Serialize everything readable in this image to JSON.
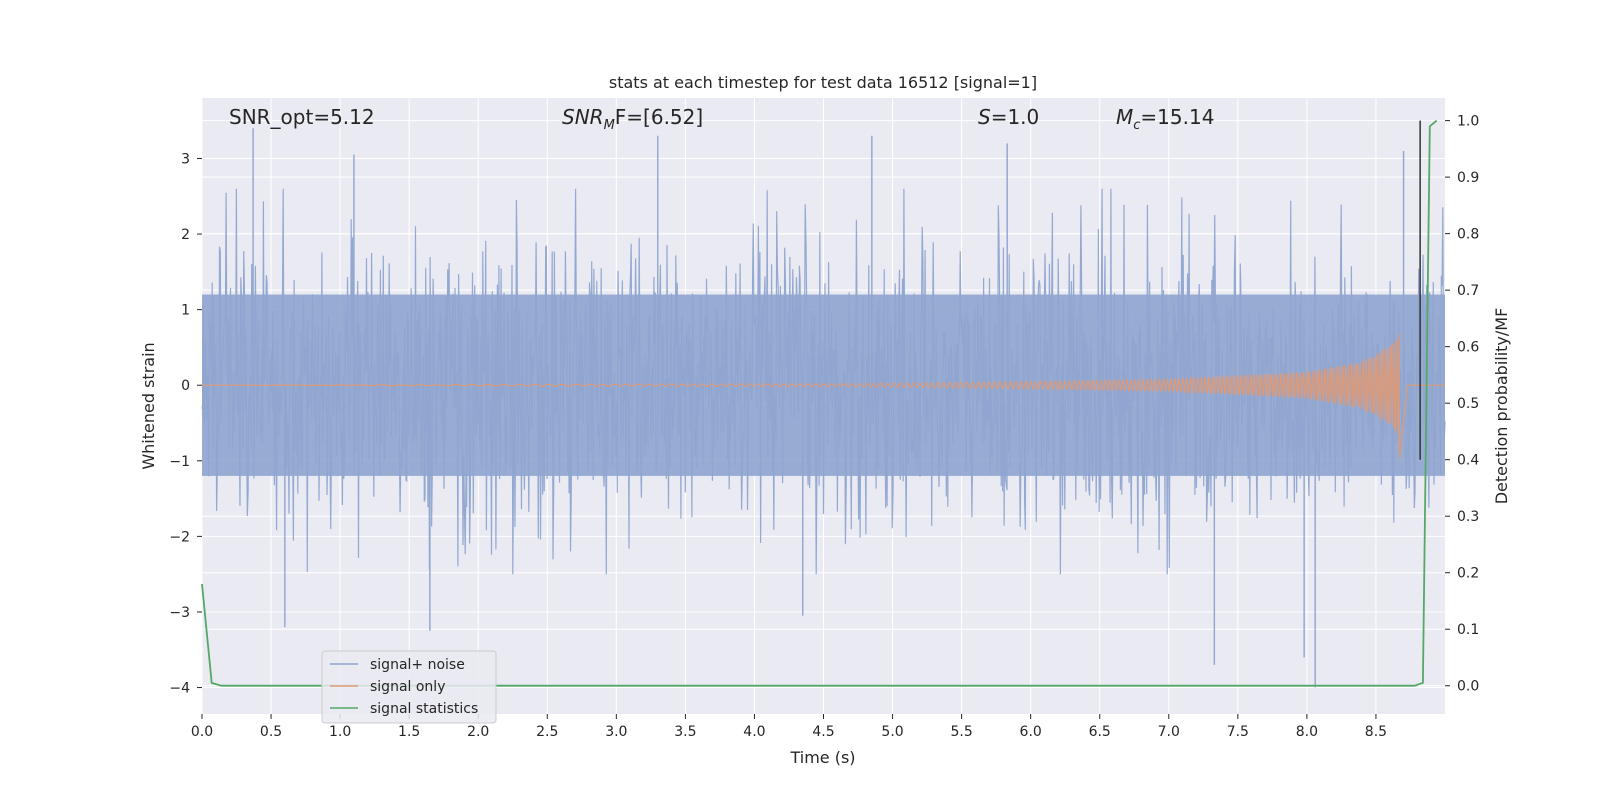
{
  "chart_data": {
    "type": "line",
    "title": "stats at each timestep for test data 16512 [signal=1]",
    "xlabel": "Time (s)",
    "ylabel_left": "Whitened strain",
    "ylabel_right": "Detection probability/MF",
    "xlim": [
      0.0,
      9.0
    ],
    "ylim_left": [
      -4.35,
      3.8
    ],
    "ylim_right": [
      -0.05,
      1.04
    ],
    "x_ticks": [
      "0.0",
      "0.5",
      "1.0",
      "1.5",
      "2.0",
      "2.5",
      "3.0",
      "3.5",
      "4.0",
      "4.5",
      "5.0",
      "5.5",
      "6.0",
      "6.5",
      "7.0",
      "7.5",
      "8.0",
      "8.5"
    ],
    "x_tick_values": [
      0.0,
      0.5,
      1.0,
      1.5,
      2.0,
      2.5,
      3.0,
      3.5,
      4.0,
      4.5,
      5.0,
      5.5,
      6.0,
      6.5,
      7.0,
      7.5,
      8.0,
      8.5
    ],
    "y_left_ticks": [
      "3",
      "2",
      "1",
      "0",
      "−1",
      "−2",
      "−3",
      "−4"
    ],
    "y_left_tick_values": [
      3,
      2,
      1,
      0,
      -1,
      -2,
      -3,
      -4
    ],
    "y_right_ticks": [
      "1.0",
      "0.9",
      "0.8",
      "0.7",
      "0.6",
      "0.5",
      "0.4",
      "0.3",
      "0.2",
      "0.1",
      "0.0"
    ],
    "y_right_tick_values": [
      1.0,
      0.9,
      0.8,
      0.7,
      0.6,
      0.5,
      0.4,
      0.3,
      0.2,
      0.1,
      0.0
    ],
    "grid": true,
    "legend_position": "lower-left",
    "annotations": {
      "snr_opt": "SNR_opt=5.12",
      "snr_mf_main": "SNR",
      "snr_mf_sub": "M",
      "snr_mf_rest": "F=[6.52]",
      "s_main": "S",
      "s_rest": "=1.0",
      "mc_main": "M",
      "mc_sub": "c",
      "mc_rest": "=15.14"
    },
    "series": [
      {
        "name": "signal+ noise",
        "color": "#8fa5cf",
        "axis": "left",
        "description": "dense whitened noise, approx. range -4.0 to 3.4",
        "envelope_typical": [
          -1.9,
          2.0
        ],
        "extremes": [
          {
            "x": 0.37,
            "y": 3.4
          },
          {
            "x": 1.1,
            "y": 3.05
          },
          {
            "x": 3.3,
            "y": 3.3
          },
          {
            "x": 4.85,
            "y": 3.3
          },
          {
            "x": 5.83,
            "y": 3.2
          },
          {
            "x": 8.7,
            "y": 3.1
          },
          {
            "x": 0.6,
            "y": -3.2
          },
          {
            "x": 1.65,
            "y": -3.25
          },
          {
            "x": 4.35,
            "y": -3.05
          },
          {
            "x": 7.33,
            "y": -3.7
          },
          {
            "x": 7.98,
            "y": -3.6
          },
          {
            "x": 8.06,
            "y": -4.0
          }
        ]
      },
      {
        "name": "signal only",
        "color": "#dd9a78",
        "axis": "left",
        "description": "chirp signal growing in amplitude, peak near t=8.67",
        "amplitude_points": [
          {
            "x": 0.0,
            "y": 0.0
          },
          {
            "x": 4.7,
            "y": 0.02
          },
          {
            "x": 6.0,
            "y": 0.05
          },
          {
            "x": 7.0,
            "y": 0.08
          },
          {
            "x": 8.0,
            "y": 0.18
          },
          {
            "x": 8.4,
            "y": 0.32
          },
          {
            "x": 8.6,
            "y": 0.55
          },
          {
            "x": 8.67,
            "y": 0.75
          }
        ],
        "min_peak": -0.97
      },
      {
        "name": "signal statistics",
        "color": "#55a868",
        "axis": "right",
        "x": [
          0.0,
          0.07,
          0.14,
          0.5,
          1.0,
          2.0,
          3.0,
          4.0,
          5.0,
          6.0,
          7.0,
          8.0,
          8.6,
          8.78,
          8.84,
          8.89,
          8.94
        ],
        "values": [
          0.18,
          0.005,
          0.0,
          0.0,
          0.0,
          0.0,
          0.0,
          0.0,
          0.0,
          0.0,
          0.0,
          0.0,
          0.0,
          0.0,
          0.005,
          0.99,
          1.0
        ]
      }
    ],
    "vertical_line": {
      "x": 8.82,
      "color": "#333333"
    }
  }
}
